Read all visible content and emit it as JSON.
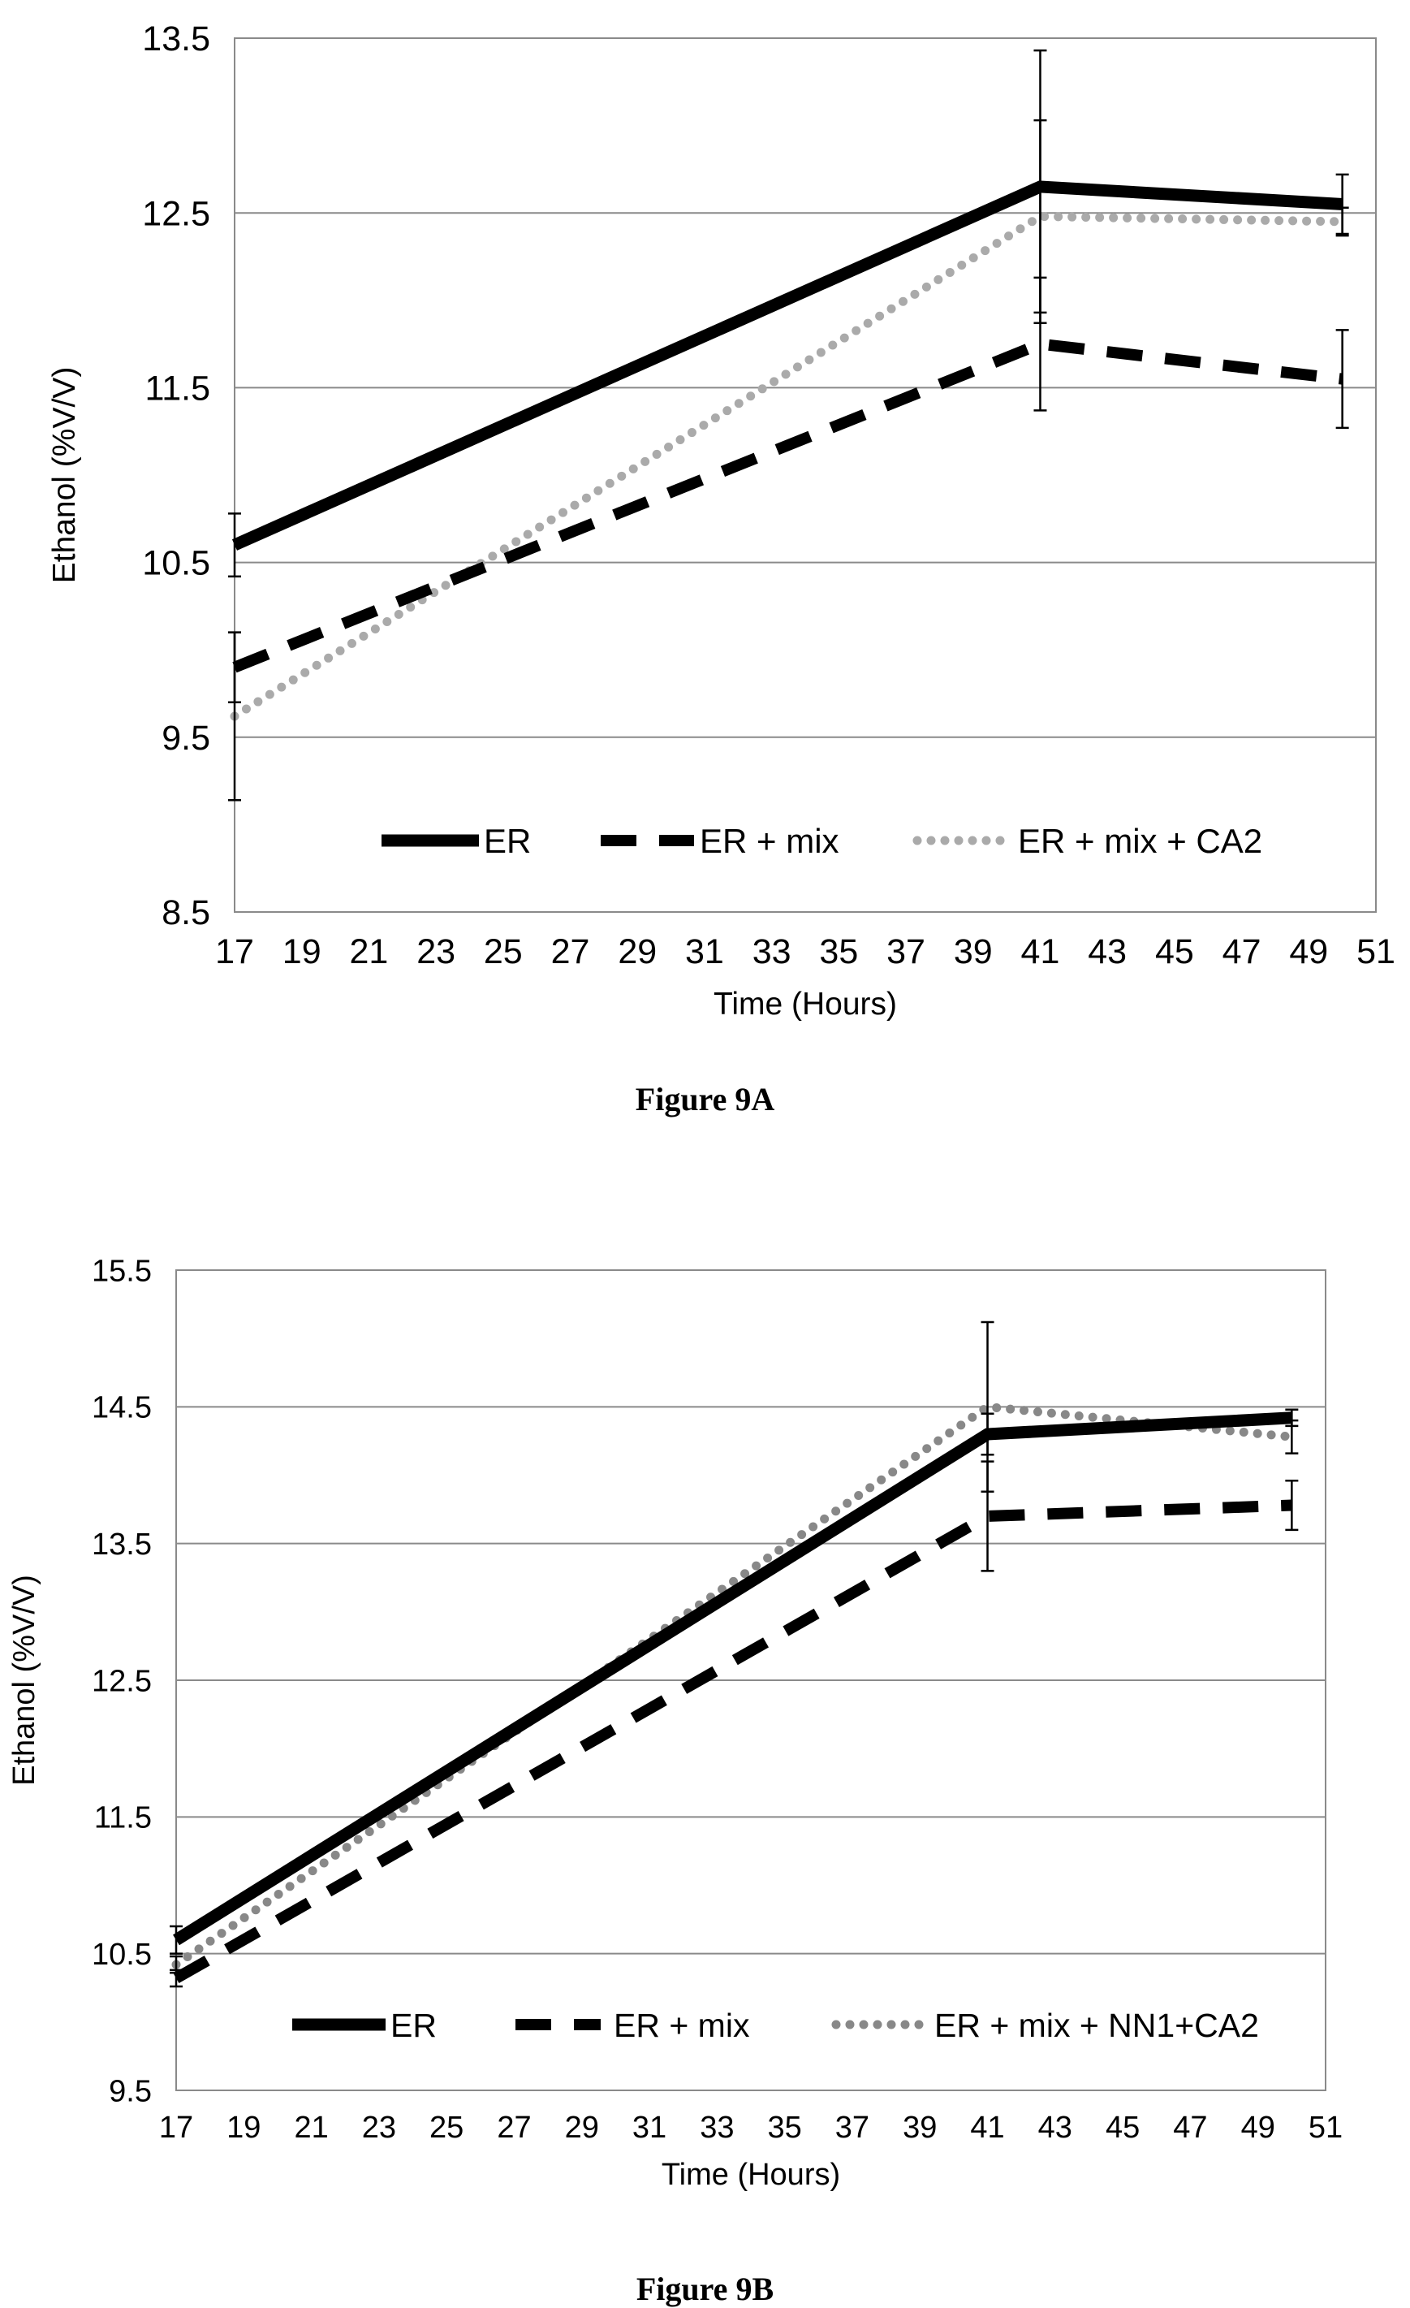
{
  "chart_data": [
    {
      "type": "line",
      "caption": "Figure 9A",
      "xlabel": "Time (Hours)",
      "ylabel": "Ethanol (%V/V)",
      "xlim": [
        17,
        51
      ],
      "ylim": [
        8.5,
        13.5
      ],
      "xticks": [
        "17",
        "19",
        "21",
        "23",
        "25",
        "27",
        "29",
        "31",
        "33",
        "35",
        "37",
        "39",
        "41",
        "43",
        "45",
        "47",
        "49",
        "51"
      ],
      "yticks": [
        "8.5",
        "9.5",
        "10.5",
        "11.5",
        "12.5",
        "13.5"
      ],
      "grid": "horizontal",
      "legend_position": "inside-bottom",
      "series": [
        {
          "name": "ER",
          "style": "solid",
          "color": "#000000",
          "x": [
            17,
            41,
            50
          ],
          "y": [
            10.6,
            12.65,
            12.55
          ],
          "err": [
            0.18,
            0.78,
            0.17
          ]
        },
        {
          "name": "ER + mix",
          "style": "dashed",
          "color": "#000000",
          "x": [
            17,
            41,
            50
          ],
          "y": [
            9.9,
            11.75,
            11.55
          ],
          "err": [
            0.2,
            0.38,
            0.28
          ]
        },
        {
          "name": "ER + mix + CA2",
          "style": "dotted",
          "color": "#aaaaaa",
          "x": [
            17,
            41,
            50
          ],
          "y": [
            9.62,
            12.48,
            12.45
          ],
          "err": [
            0.48,
            0.55,
            0.08
          ]
        }
      ]
    },
    {
      "type": "line",
      "caption": "Figure 9B",
      "xlabel": "Time (Hours)",
      "ylabel": "Ethanol (%V/V)",
      "xlim": [
        17,
        51
      ],
      "ylim": [
        9.5,
        15.5
      ],
      "xticks": [
        "17",
        "19",
        "21",
        "23",
        "25",
        "27",
        "29",
        "31",
        "33",
        "35",
        "37",
        "39",
        "41",
        "43",
        "45",
        "47",
        "49",
        "51"
      ],
      "yticks": [
        "9.5",
        "10.5",
        "11.5",
        "12.5",
        "13.5",
        "14.5",
        "15.5"
      ],
      "grid": "horizontal",
      "legend_position": "inside-bottom",
      "series": [
        {
          "name": "ER",
          "style": "solid",
          "color": "#000000",
          "x": [
            17,
            41,
            50
          ],
          "y": [
            10.6,
            14.3,
            14.42
          ],
          "err": [
            0.1,
            0.15,
            0.06
          ]
        },
        {
          "name": "ER + mix",
          "style": "dashed",
          "color": "#000000",
          "x": [
            17,
            41,
            50
          ],
          "y": [
            10.32,
            13.7,
            13.78
          ],
          "err": [
            0.06,
            0.4,
            0.18
          ]
        },
        {
          "name": "ER + mix + NN1+CA2",
          "style": "dotted",
          "color": "#888888",
          "x": [
            17,
            41,
            50
          ],
          "y": [
            10.42,
            14.5,
            14.28
          ],
          "err": [
            0.06,
            0.62,
            0.12
          ]
        }
      ]
    }
  ]
}
